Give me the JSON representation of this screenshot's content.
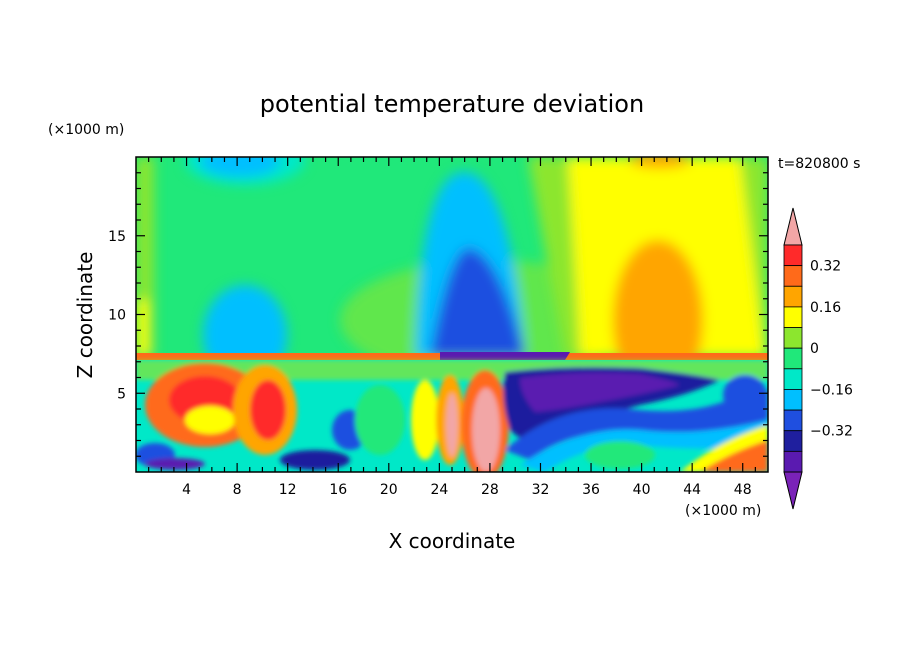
{
  "chart_data": {
    "type": "heatmap",
    "title": "potential temperature deviation",
    "xlabel": "X coordinate",
    "ylabel": "Z coordinate",
    "x_unit": "(×1000 m)",
    "y_unit": "(×1000 m)",
    "time_label": "t=820800 s",
    "xlim": [
      0,
      50
    ],
    "ylim": [
      0,
      20
    ],
    "x_ticks": [
      4,
      8,
      12,
      16,
      20,
      24,
      28,
      32,
      36,
      40,
      44,
      48
    ],
    "y_ticks": [
      5,
      10,
      15
    ],
    "colorbar": {
      "levels": [
        -0.48,
        -0.4,
        -0.32,
        -0.24,
        -0.16,
        -0.08,
        0,
        0.08,
        0.16,
        0.24,
        0.32,
        0.4
      ],
      "tick_values": [
        0.32,
        0.16,
        0,
        -0.16,
        -0.32
      ],
      "tick_labels": [
        "0.32",
        "0.16",
        "0",
        "−0.16",
        "−0.32"
      ],
      "colors": [
        "#7a22b8",
        "#5a1ab0",
        "#1f1f9e",
        "#1f4fe0",
        "#00bfff",
        "#00e8c8",
        "#20e87a",
        "#8ce62e",
        "#ffff00",
        "#ffa500",
        "#ff6a1a",
        "#ff2a2a",
        "#f2a6a6"
      ],
      "extend": "both"
    },
    "regions": [
      {
        "x": [
          0,
          50
        ],
        "z": [
          7.5,
          20
        ],
        "value": 0.04
      },
      {
        "x": [
          3,
          11
        ],
        "z": [
          16,
          20
        ],
        "value": -0.14
      },
      {
        "x": [
          6,
          11
        ],
        "z": [
          7.5,
          12
        ],
        "value": -0.12
      },
      {
        "x": [
          23,
          30
        ],
        "z": [
          7.5,
          19
        ],
        "value": -0.12
      },
      {
        "x": [
          24,
          29
        ],
        "z": [
          7.5,
          14
        ],
        "value": -0.3
      },
      {
        "x": [
          31,
          50
        ],
        "z": [
          7.5,
          20
        ],
        "value": 0.12
      },
      {
        "x": [
          38,
          44
        ],
        "z": [
          7.5,
          14
        ],
        "value": 0.2
      },
      {
        "x": [
          0,
          50
        ],
        "z": [
          0,
          7.5
        ],
        "value": 0.0
      },
      {
        "x": [
          1,
          12
        ],
        "z": [
          1,
          6
        ],
        "value": 0.26
      },
      {
        "x": [
          24.5,
          28
        ],
        "z": [
          0,
          6
        ],
        "value": 0.42
      },
      {
        "x": [
          29,
          40
        ],
        "z": [
          2,
          7
        ],
        "value": -0.4
      },
      {
        "x": [
          40,
          50
        ],
        "z": [
          0,
          3
        ],
        "value": 0.28
      },
      {
        "x": [
          10,
          16
        ],
        "z": [
          0,
          1.5
        ],
        "value": -0.36
      }
    ]
  }
}
